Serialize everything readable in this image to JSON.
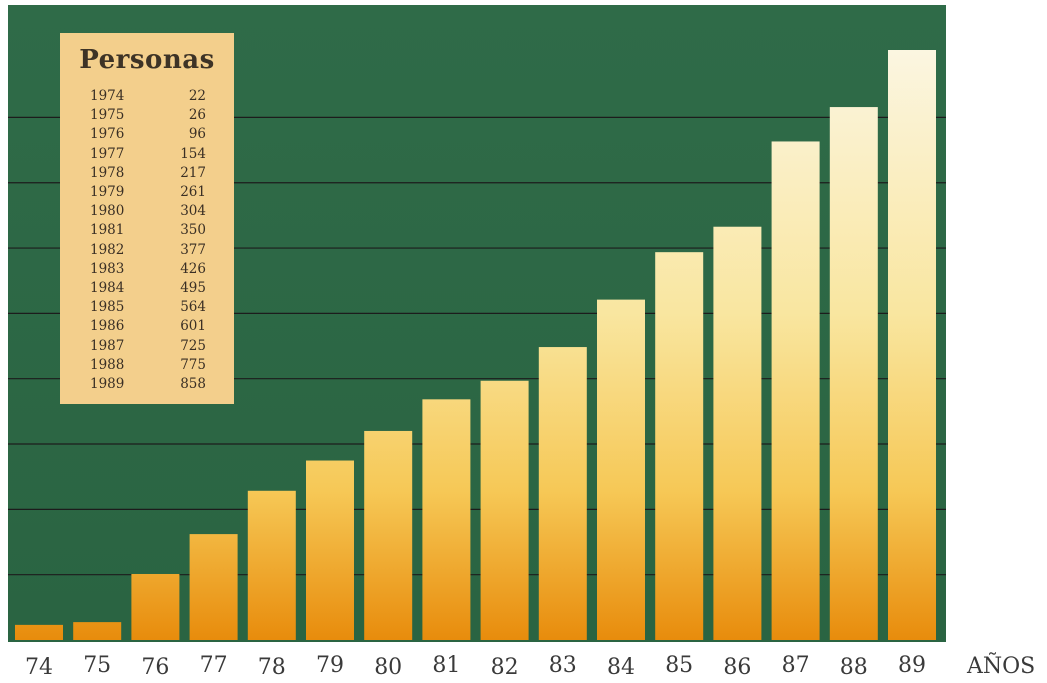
{
  "chart_data": {
    "type": "bar",
    "title": "Personas",
    "xlabel": "AÑOS",
    "ylabel": "",
    "categories": [
      "74",
      "75",
      "76",
      "77",
      "78",
      "79",
      "80",
      "81",
      "82",
      "83",
      "84",
      "85",
      "86",
      "87",
      "88",
      "89"
    ],
    "values": [
      22,
      26,
      96,
      154,
      217,
      261,
      304,
      350,
      377,
      426,
      495,
      564,
      601,
      725,
      775,
      858
    ],
    "ylim": [
      0,
      900
    ],
    "grid": true,
    "legend_table": {
      "title": "Personas",
      "rows": [
        {
          "year": "1974",
          "value": "22"
        },
        {
          "year": "1975",
          "value": "26"
        },
        {
          "year": "1976",
          "value": "96"
        },
        {
          "year": "1977",
          "value": "154"
        },
        {
          "year": "1978",
          "value": "217"
        },
        {
          "year": "1979",
          "value": "261"
        },
        {
          "year": "1980",
          "value": "304"
        },
        {
          "year": "1981",
          "value": "350"
        },
        {
          "year": "1982",
          "value": "377"
        },
        {
          "year": "1983",
          "value": "426"
        },
        {
          "year": "1984",
          "value": "495"
        },
        {
          "year": "1985",
          "value": "564"
        },
        {
          "year": "1986",
          "value": "601"
        },
        {
          "year": "1987",
          "value": "725"
        },
        {
          "year": "1988",
          "value": "775"
        },
        {
          "year": "1989",
          "value": "858"
        }
      ]
    },
    "colors": {
      "background": "#2e6a47",
      "bar_top": "#fbf5df",
      "bar_mid": "#f7d36a",
      "bar_bottom": "#e8900e",
      "gridline": "#1c1c1c",
      "legend_box": "#f3cf8c"
    }
  }
}
